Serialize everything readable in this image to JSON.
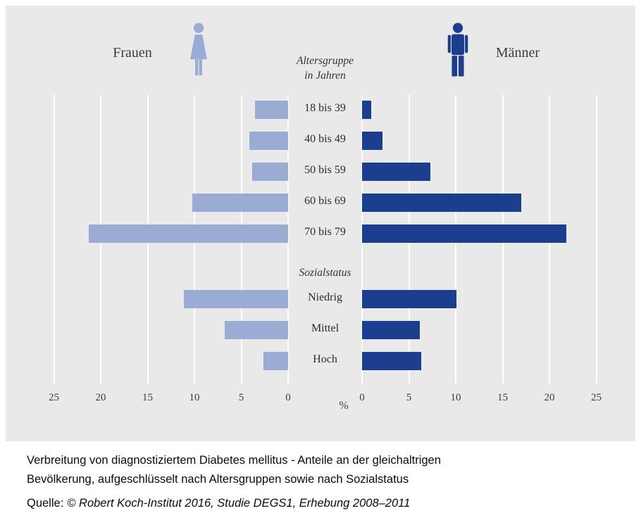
{
  "chart_data": {
    "type": "bar",
    "layout": "bilateral-horizontal-pyramid",
    "left_label": "Frauen",
    "right_label": "Männer",
    "center_header": [
      "Altersgruppe",
      "in Jahren"
    ],
    "group2_header": "Sozialstatus",
    "unit_label": "%",
    "axis_ticks": [
      0,
      5,
      10,
      15,
      20,
      25
    ],
    "axis_max": 25,
    "gridlines": "white vertical lines on gray background",
    "categories": [
      "18 bis 39",
      "40 bis 49",
      "50 bis 59",
      "60 bis 69",
      "70 bis 79",
      "Niedrig",
      "Mittel",
      "Hoch"
    ],
    "groups": [
      {
        "header": "Altersgruppe in Jahren",
        "categories": [
          "18 bis 39",
          "40 bis 49",
          "50 bis 59",
          "60 bis 69",
          "70 bis 79"
        ]
      },
      {
        "header": "Sozialstatus",
        "categories": [
          "Niedrig",
          "Mittel",
          "Hoch"
        ]
      }
    ],
    "series": [
      {
        "name": "Frauen",
        "side": "left",
        "color": "#9aabd4",
        "values": [
          3.5,
          4.1,
          3.8,
          10.2,
          21.3,
          11.1,
          6.8,
          2.6
        ]
      },
      {
        "name": "Männer",
        "side": "right",
        "color": "#1b3e8f",
        "values": [
          1.0,
          2.2,
          7.3,
          17.0,
          21.8,
          10.1,
          6.2,
          6.3
        ]
      }
    ],
    "icons": {
      "left": "woman-pictogram-icon",
      "right": "man-pictogram-icon"
    },
    "colors": {
      "panel_background": "#e9e9e9",
      "gridline": "#ffffff",
      "frauen_bar": "#9aabd4",
      "maenner_bar": "#1b3e8f"
    }
  },
  "caption": "Verbreitung von diagnostiziertem Diabetes mellitus - Anteile an der gleichaltrigen\nBevölkerung, aufgeschlüsselt nach Altersgruppen sowie nach Sozialstatus",
  "source": {
    "prefix": "Quelle:",
    "text": "© Robert Koch-Institut 2016, Studie DEGS1, Erhebung 2008–2011"
  }
}
